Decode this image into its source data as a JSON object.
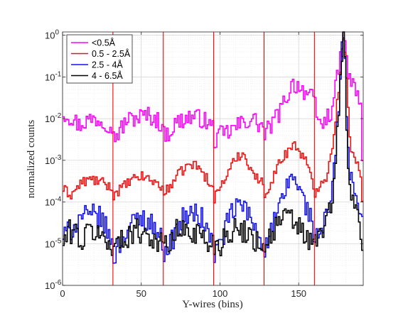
{
  "chart_data": {
    "type": "line",
    "title": "",
    "xlabel": "Y-wires (bins)",
    "ylabel": "normalized counts",
    "xlim": [
      0,
      191
    ],
    "ylim": [
      1e-06,
      1.2
    ],
    "yscale": "log",
    "xticks": [
      0,
      50,
      100,
      150
    ],
    "yticks": [
      {
        "value": 1e-06,
        "base": "10",
        "exp": "-6"
      },
      {
        "value": 1e-05,
        "base": "10",
        "exp": "-5"
      },
      {
        "value": 0.0001,
        "base": "10",
        "exp": "-4"
      },
      {
        "value": 0.001,
        "base": "10",
        "exp": "-3"
      },
      {
        "value": 0.01,
        "base": "10",
        "exp": "-2"
      },
      {
        "value": 0.1,
        "base": "10",
        "exp": "-1"
      },
      {
        "value": 1,
        "base": "10",
        "exp": "0"
      }
    ],
    "grid": true,
    "minor_grid": true,
    "legend_position": "top-left",
    "step_plot": true,
    "vertical_lines": {
      "x": [
        32,
        64,
        96,
        128,
        160
      ],
      "color": "#ff0000"
    },
    "series": [
      {
        "name": "<0.5Å",
        "color": "#ff00ff",
        "anchors": [
          [
            0,
            0.014
          ],
          [
            5,
            0.011
          ],
          [
            10,
            0.007
          ],
          [
            15,
            0.009
          ],
          [
            20,
            0.01
          ],
          [
            25,
            0.009
          ],
          [
            31,
            0.007
          ],
          [
            32,
            0.0035
          ],
          [
            36,
            0.005
          ],
          [
            40,
            0.009
          ],
          [
            48,
            0.011
          ],
          [
            55,
            0.012
          ],
          [
            60,
            0.009
          ],
          [
            63,
            0.007
          ],
          [
            64,
            0.004
          ],
          [
            68,
            0.005
          ],
          [
            72,
            0.008
          ],
          [
            80,
            0.011
          ],
          [
            88,
            0.01
          ],
          [
            95,
            0.006
          ],
          [
            96,
            0.003
          ],
          [
            100,
            0.004
          ],
          [
            106,
            0.005
          ],
          [
            114,
            0.008
          ],
          [
            120,
            0.01
          ],
          [
            127,
            0.006
          ],
          [
            128,
            0.004
          ],
          [
            133,
            0.008
          ],
          [
            138,
            0.015
          ],
          [
            142,
            0.035
          ],
          [
            146,
            0.07
          ],
          [
            150,
            0.06
          ],
          [
            155,
            0.04
          ],
          [
            158,
            0.03
          ],
          [
            160,
            0.02
          ],
          [
            162,
            0.008
          ],
          [
            166,
            0.008
          ],
          [
            170,
            0.015
          ],
          [
            173,
            0.05
          ],
          [
            175,
            0.15
          ],
          [
            177,
            0.5
          ],
          [
            178,
            1.0
          ],
          [
            179,
            0.6
          ],
          [
            181,
            0.12
          ],
          [
            184,
            0.06
          ],
          [
            187,
            0.04
          ],
          [
            189,
            0.02
          ],
          [
            190,
            0.0012
          ]
        ],
        "noise": 0.45
      },
      {
        "name": "0.5 - 2.5Å",
        "color": "#ee1111",
        "anchors": [
          [
            0,
            0.0002
          ],
          [
            5,
            0.00015
          ],
          [
            8,
            0.0002
          ],
          [
            12,
            0.0003
          ],
          [
            18,
            0.00035
          ],
          [
            24,
            0.0003
          ],
          [
            28,
            0.00025
          ],
          [
            31,
            0.0002
          ],
          [
            32,
            0.00015
          ],
          [
            36,
            0.0002
          ],
          [
            42,
            0.0003
          ],
          [
            48,
            0.0004
          ],
          [
            52,
            0.0004
          ],
          [
            58,
            0.0003
          ],
          [
            62,
            0.00025
          ],
          [
            64,
            0.00015
          ],
          [
            68,
            0.00025
          ],
          [
            72,
            0.0004
          ],
          [
            78,
            0.0007
          ],
          [
            82,
            0.0008
          ],
          [
            86,
            0.0007
          ],
          [
            90,
            0.0004
          ],
          [
            94,
            0.0003
          ],
          [
            96,
            0.00012
          ],
          [
            100,
            0.00025
          ],
          [
            105,
            0.0005
          ],
          [
            110,
            0.0012
          ],
          [
            114,
            0.0015
          ],
          [
            118,
            0.0008
          ],
          [
            122,
            0.0004
          ],
          [
            126,
            0.0003
          ],
          [
            128,
            0.00015
          ],
          [
            132,
            0.0003
          ],
          [
            136,
            0.0007
          ],
          [
            140,
            0.0012
          ],
          [
            144,
            0.002
          ],
          [
            146,
            0.0025
          ],
          [
            150,
            0.0017
          ],
          [
            154,
            0.001
          ],
          [
            158,
            0.0003
          ],
          [
            160,
            0.00015
          ],
          [
            163,
            0.0003
          ],
          [
            167,
            0.0004
          ],
          [
            170,
            0.0012
          ],
          [
            173,
            0.01
          ],
          [
            175,
            0.05
          ],
          [
            177,
            0.5
          ],
          [
            178,
            0.9
          ],
          [
            179,
            0.5
          ],
          [
            181,
            0.015
          ],
          [
            183,
            0.0015
          ],
          [
            186,
            0.0009
          ],
          [
            189,
            0.0004
          ],
          [
            190,
            8e-05
          ]
        ],
        "noise": 0.25
      },
      {
        "name": "2.5 - 4Å",
        "color": "#1010ee",
        "anchors": [
          [
            0,
            1.5e-05
          ],
          [
            4,
            2e-05
          ],
          [
            8,
            3e-05
          ],
          [
            12,
            5e-05
          ],
          [
            16,
            4e-05
          ],
          [
            20,
            5e-05
          ],
          [
            24,
            4e-05
          ],
          [
            28,
            2e-05
          ],
          [
            31,
            1e-05
          ],
          [
            32,
            5e-06
          ],
          [
            36,
            1e-05
          ],
          [
            40,
            2e-05
          ],
          [
            44,
            3e-05
          ],
          [
            48,
            4e-05
          ],
          [
            52,
            4e-05
          ],
          [
            56,
            3e-05
          ],
          [
            60,
            2e-05
          ],
          [
            63,
            1e-05
          ],
          [
            64,
            7e-06
          ],
          [
            68,
            1e-05
          ],
          [
            72,
            2e-05
          ],
          [
            76,
            4e-05
          ],
          [
            80,
            5e-05
          ],
          [
            84,
            5e-05
          ],
          [
            88,
            4e-05
          ],
          [
            92,
            2e-05
          ],
          [
            95,
            1e-05
          ],
          [
            96,
            6e-06
          ],
          [
            100,
            1e-05
          ],
          [
            104,
            3e-05
          ],
          [
            108,
            6e-05
          ],
          [
            112,
            9e-05
          ],
          [
            116,
            7e-05
          ],
          [
            120,
            3e-05
          ],
          [
            124,
            2e-05
          ],
          [
            127,
            1e-05
          ],
          [
            128,
            7e-06
          ],
          [
            132,
            2e-05
          ],
          [
            136,
            5e-05
          ],
          [
            140,
            0.00012
          ],
          [
            143,
            0.0003
          ],
          [
            145,
            0.00045
          ],
          [
            148,
            0.0003
          ],
          [
            152,
            0.00012
          ],
          [
            156,
            6e-05
          ],
          [
            159,
            2e-05
          ],
          [
            160,
            1e-05
          ],
          [
            163,
            2e-05
          ],
          [
            167,
            4e-05
          ],
          [
            170,
            0.0001
          ],
          [
            172,
            0.0005
          ],
          [
            174,
            0.005
          ],
          [
            176,
            0.1
          ],
          [
            177,
            0.5
          ],
          [
            178,
            0.8
          ],
          [
            179,
            0.3
          ],
          [
            180,
            0.01
          ],
          [
            182,
            0.0004
          ],
          [
            185,
            0.00015
          ],
          [
            188,
            0.0001
          ],
          [
            190,
            4e-05
          ]
        ],
        "noise": 0.55
      },
      {
        "name": "4 - 6.5Å",
        "color": "#000000",
        "anchors": [
          [
            0,
            1e-05
          ],
          [
            4,
            2e-05
          ],
          [
            8,
            2e-05
          ],
          [
            12,
            1e-05
          ],
          [
            16,
            2e-05
          ],
          [
            20,
            2e-05
          ],
          [
            24,
            1.5e-05
          ],
          [
            28,
            1e-05
          ],
          [
            32,
            1e-05
          ],
          [
            36,
            1e-05
          ],
          [
            40,
            1.5e-05
          ],
          [
            44,
            2e-05
          ],
          [
            48,
            2e-05
          ],
          [
            52,
            2e-05
          ],
          [
            56,
            1.5e-05
          ],
          [
            60,
            1e-05
          ],
          [
            64,
            1e-05
          ],
          [
            68,
            1e-05
          ],
          [
            72,
            2e-05
          ],
          [
            76,
            2e-05
          ],
          [
            80,
            2e-05
          ],
          [
            84,
            2e-05
          ],
          [
            88,
            1.5e-05
          ],
          [
            92,
            1e-05
          ],
          [
            96,
            1e-05
          ],
          [
            100,
            1e-05
          ],
          [
            104,
            2e-05
          ],
          [
            108,
            2e-05
          ],
          [
            112,
            2e-05
          ],
          [
            116,
            2e-05
          ],
          [
            120,
            1.5e-05
          ],
          [
            124,
            1e-05
          ],
          [
            128,
            1e-05
          ],
          [
            132,
            1.5e-05
          ],
          [
            136,
            3e-05
          ],
          [
            140,
            4e-05
          ],
          [
            144,
            4e-05
          ],
          [
            148,
            3e-05
          ],
          [
            152,
            2e-05
          ],
          [
            156,
            1e-05
          ],
          [
            160,
            1e-05
          ],
          [
            164,
            2e-05
          ],
          [
            168,
            4e-05
          ],
          [
            171,
            0.0001
          ],
          [
            173,
            0.0008
          ],
          [
            175,
            0.02
          ],
          [
            177,
            0.4
          ],
          [
            178,
            0.9
          ],
          [
            179,
            0.2
          ],
          [
            180,
            0.005
          ],
          [
            182,
            0.0002
          ],
          [
            185,
            8e-05
          ],
          [
            188,
            4e-05
          ],
          [
            190,
            1e-05
          ]
        ],
        "noise": 0.6
      }
    ]
  }
}
